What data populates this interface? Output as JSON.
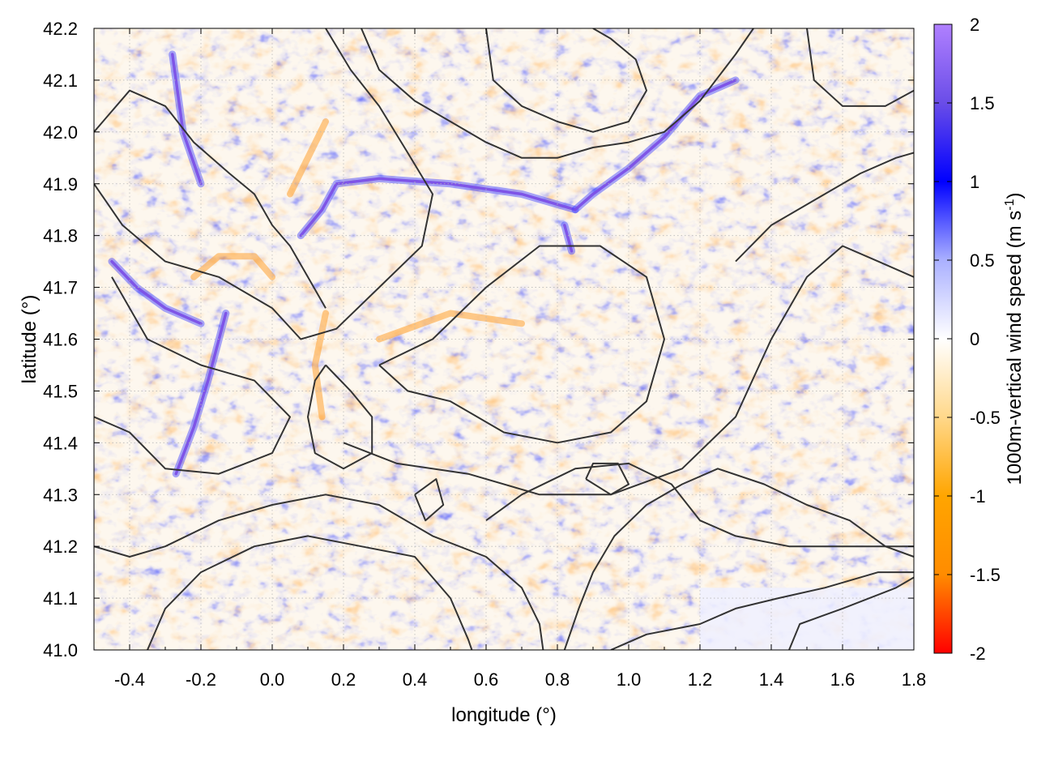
{
  "chart_data": {
    "type": "heatmap",
    "title": "",
    "xlabel": "longitude (°)",
    "ylabel": "latitude (°)",
    "xlim": [
      -0.5,
      1.8
    ],
    "ylim": [
      41.0,
      42.2
    ],
    "xticks": [
      -0.4,
      -0.2,
      0.0,
      0.2,
      0.4,
      0.6,
      0.8,
      1.0,
      1.2,
      1.4,
      1.6,
      1.8
    ],
    "xtick_labels": [
      "-0.4",
      "-0.2",
      "0.0",
      "0.2",
      "0.4",
      "0.6",
      "0.8",
      "1.0",
      "1.2",
      "1.4",
      "1.6",
      "1.8"
    ],
    "yticks": [
      41.0,
      41.1,
      41.2,
      41.3,
      41.4,
      41.5,
      41.6,
      41.7,
      41.8,
      41.9,
      42.0,
      42.1,
      42.2
    ],
    "ytick_labels": [
      "41.0",
      "41.1",
      "41.2",
      "41.3",
      "41.4",
      "41.5",
      "41.6",
      "41.7",
      "41.8",
      "41.9",
      "42.0",
      "42.1",
      "42.2"
    ],
    "grid": true,
    "colorbar": {
      "label_main": "1000m-vertical wind speed (m s",
      "label_sup": "-1",
      "label_end": ")",
      "range": [
        -2,
        2
      ],
      "ticks": [
        2,
        1.5,
        1,
        0.5,
        0,
        -0.5,
        -1,
        -1.5,
        -2
      ],
      "tick_labels": [
        "2",
        "1.5",
        "1",
        "0.5",
        "0",
        "-0.5",
        "-1",
        "-1.5",
        "-2"
      ],
      "colors": [
        "#ff0000",
        "#ff8c00",
        "#ffa500",
        "#ffd88a",
        "#ffffff",
        "#aab0ff",
        "#0000ff",
        "#6a4de8",
        "#b080ff"
      ]
    },
    "features": {
      "updraft_lines": [
        [
          [
            -0.13,
            41.65
          ],
          [
            -0.18,
            41.52
          ],
          [
            -0.22,
            41.43
          ],
          [
            -0.27,
            41.34
          ]
        ],
        [
          [
            0.08,
            41.8
          ],
          [
            0.14,
            41.85
          ],
          [
            0.18,
            41.9
          ],
          [
            0.3,
            41.91
          ],
          [
            0.5,
            41.9
          ],
          [
            0.7,
            41.88
          ],
          [
            0.85,
            41.85
          ]
        ],
        [
          [
            0.85,
            41.85
          ],
          [
            0.9,
            41.88
          ],
          [
            1.0,
            41.93
          ],
          [
            1.1,
            41.99
          ],
          [
            1.2,
            42.07
          ],
          [
            1.3,
            42.1
          ]
        ],
        [
          [
            -0.45,
            41.75
          ],
          [
            -0.38,
            41.7
          ],
          [
            -0.3,
            41.66
          ],
          [
            -0.2,
            41.63
          ]
        ],
        [
          [
            -0.28,
            42.15
          ],
          [
            -0.25,
            42.0
          ],
          [
            -0.2,
            41.9
          ]
        ],
        [
          [
            0.82,
            41.82
          ],
          [
            0.84,
            41.77
          ]
        ]
      ],
      "downdraft_lines": [
        [
          [
            -0.22,
            41.72
          ],
          [
            -0.15,
            41.76
          ],
          [
            -0.05,
            41.76
          ],
          [
            0.0,
            41.72
          ]
        ],
        [
          [
            0.05,
            41.88
          ],
          [
            0.1,
            41.95
          ],
          [
            0.15,
            42.02
          ]
        ],
        [
          [
            0.3,
            41.6
          ],
          [
            0.5,
            41.65
          ],
          [
            0.7,
            41.63
          ]
        ],
        [
          [
            0.15,
            41.65
          ],
          [
            0.12,
            41.55
          ],
          [
            0.14,
            41.45
          ]
        ]
      ],
      "contours": [
        [
          [
            -0.5,
            41.45
          ],
          [
            -0.4,
            41.42
          ],
          [
            -0.3,
            41.35
          ],
          [
            -0.15,
            41.34
          ],
          [
            0.0,
            41.38
          ],
          [
            0.05,
            41.45
          ],
          [
            -0.05,
            41.52
          ],
          [
            -0.2,
            41.55
          ],
          [
            -0.35,
            41.6
          ],
          [
            -0.45,
            41.72
          ]
        ],
        [
          [
            -0.5,
            41.9
          ],
          [
            -0.42,
            41.82
          ],
          [
            -0.3,
            41.75
          ],
          [
            -0.15,
            41.72
          ],
          [
            0.0,
            41.66
          ],
          [
            0.08,
            41.6
          ],
          [
            0.18,
            41.62
          ],
          [
            0.3,
            41.7
          ],
          [
            0.42,
            41.78
          ],
          [
            0.45,
            41.88
          ],
          [
            0.38,
            41.96
          ],
          [
            0.3,
            42.05
          ],
          [
            0.22,
            42.12
          ],
          [
            0.15,
            42.2
          ]
        ],
        [
          [
            -0.5,
            42.0
          ],
          [
            -0.4,
            42.08
          ],
          [
            -0.3,
            42.05
          ],
          [
            -0.22,
            41.98
          ],
          [
            -0.12,
            41.92
          ],
          [
            -0.05,
            41.88
          ],
          [
            0.0,
            41.82
          ],
          [
            0.05,
            41.78
          ],
          [
            0.1,
            41.72
          ],
          [
            0.15,
            41.66
          ]
        ],
        [
          [
            0.3,
            41.55
          ],
          [
            0.45,
            41.6
          ],
          [
            0.6,
            41.7
          ],
          [
            0.75,
            41.78
          ],
          [
            0.92,
            41.78
          ],
          [
            1.05,
            41.72
          ],
          [
            1.1,
            41.6
          ],
          [
            1.05,
            41.48
          ],
          [
            0.95,
            41.42
          ],
          [
            0.8,
            41.4
          ],
          [
            0.65,
            41.42
          ],
          [
            0.5,
            41.48
          ],
          [
            0.38,
            41.5
          ],
          [
            0.3,
            41.55
          ]
        ],
        [
          [
            0.2,
            41.4
          ],
          [
            0.35,
            41.36
          ],
          [
            0.55,
            41.34
          ],
          [
            0.75,
            41.3
          ],
          [
            0.95,
            41.3
          ],
          [
            1.15,
            41.35
          ],
          [
            1.3,
            41.45
          ],
          [
            1.4,
            41.6
          ],
          [
            1.5,
            41.72
          ],
          [
            1.6,
            41.78
          ],
          [
            1.7,
            41.75
          ],
          [
            1.8,
            41.72
          ]
        ],
        [
          [
            0.6,
            41.25
          ],
          [
            0.7,
            41.3
          ],
          [
            0.85,
            41.35
          ],
          [
            1.0,
            41.36
          ],
          [
            1.12,
            41.32
          ],
          [
            1.2,
            41.25
          ],
          [
            1.3,
            41.22
          ],
          [
            1.45,
            41.2
          ],
          [
            1.6,
            41.2
          ],
          [
            1.75,
            41.2
          ],
          [
            1.8,
            41.2
          ]
        ],
        [
          [
            0.82,
            41.0
          ],
          [
            0.86,
            41.08
          ],
          [
            0.9,
            41.15
          ],
          [
            0.96,
            41.22
          ],
          [
            1.05,
            41.28
          ],
          [
            1.15,
            41.32
          ],
          [
            1.25,
            41.35
          ],
          [
            1.38,
            41.32
          ],
          [
            1.5,
            41.28
          ],
          [
            1.62,
            41.25
          ],
          [
            1.72,
            41.2
          ],
          [
            1.8,
            41.18
          ]
        ],
        [
          [
            0.95,
            41.0
          ],
          [
            1.05,
            41.03
          ],
          [
            1.2,
            41.05
          ],
          [
            1.3,
            41.08
          ],
          [
            1.42,
            41.1
          ],
          [
            1.55,
            41.12
          ],
          [
            1.7,
            41.15
          ],
          [
            1.8,
            41.15
          ]
        ],
        [
          [
            -0.35,
            41.0
          ],
          [
            -0.3,
            41.08
          ],
          [
            -0.2,
            41.15
          ],
          [
            -0.05,
            41.2
          ],
          [
            0.1,
            41.22
          ],
          [
            0.25,
            41.2
          ],
          [
            0.4,
            41.18
          ],
          [
            0.5,
            41.1
          ],
          [
            0.55,
            41.02
          ],
          [
            0.56,
            41.0
          ]
        ],
        [
          [
            -0.5,
            41.2
          ],
          [
            -0.4,
            41.18
          ],
          [
            -0.3,
            41.2
          ],
          [
            -0.15,
            41.25
          ],
          [
            0.0,
            41.28
          ],
          [
            0.15,
            41.3
          ],
          [
            0.3,
            41.28
          ],
          [
            0.45,
            41.22
          ],
          [
            0.6,
            41.18
          ],
          [
            0.7,
            41.12
          ],
          [
            0.75,
            41.05
          ],
          [
            0.76,
            41.0
          ]
        ],
        [
          [
            0.6,
            42.2
          ],
          [
            0.62,
            42.1
          ],
          [
            0.7,
            42.05
          ],
          [
            0.8,
            42.02
          ],
          [
            0.9,
            42.0
          ],
          [
            1.0,
            42.02
          ],
          [
            1.05,
            42.08
          ],
          [
            1.02,
            42.14
          ],
          [
            0.95,
            42.18
          ],
          [
            0.9,
            42.2
          ]
        ],
        [
          [
            0.25,
            42.2
          ],
          [
            0.3,
            42.12
          ],
          [
            0.4,
            42.06
          ],
          [
            0.5,
            42.02
          ],
          [
            0.6,
            41.98
          ],
          [
            0.7,
            41.95
          ],
          [
            0.8,
            41.95
          ],
          [
            0.9,
            41.97
          ],
          [
            1.0,
            41.98
          ],
          [
            1.1,
            42.0
          ],
          [
            1.2,
            42.06
          ],
          [
            1.3,
            42.15
          ],
          [
            1.35,
            42.2
          ]
        ],
        [
          [
            1.45,
            41.0
          ],
          [
            1.48,
            41.05
          ],
          [
            1.6,
            41.08
          ],
          [
            1.75,
            41.12
          ],
          [
            1.8,
            41.14
          ]
        ],
        [
          [
            1.5,
            42.2
          ],
          [
            1.52,
            42.1
          ],
          [
            1.6,
            42.05
          ],
          [
            1.72,
            42.05
          ],
          [
            1.8,
            42.08
          ]
        ],
        [
          [
            1.3,
            41.75
          ],
          [
            1.4,
            41.82
          ],
          [
            1.55,
            41.88
          ],
          [
            1.65,
            41.92
          ],
          [
            1.75,
            41.95
          ],
          [
            1.8,
            41.96
          ]
        ],
        [
          [
            0.4,
            41.3
          ],
          [
            0.43,
            41.25
          ],
          [
            0.48,
            41.28
          ],
          [
            0.46,
            41.33
          ],
          [
            0.4,
            41.3
          ]
        ],
        [
          [
            0.88,
            41.33
          ],
          [
            0.95,
            41.3
          ],
          [
            1.0,
            41.32
          ],
          [
            0.97,
            41.36
          ],
          [
            0.9,
            41.36
          ],
          [
            0.88,
            41.33
          ]
        ],
        [
          [
            0.15,
            41.55
          ],
          [
            0.22,
            41.5
          ],
          [
            0.28,
            41.45
          ],
          [
            0.28,
            41.38
          ],
          [
            0.2,
            41.35
          ],
          [
            0.12,
            41.38
          ],
          [
            0.1,
            41.45
          ],
          [
            0.12,
            41.52
          ],
          [
            0.15,
            41.55
          ]
        ]
      ]
    }
  }
}
